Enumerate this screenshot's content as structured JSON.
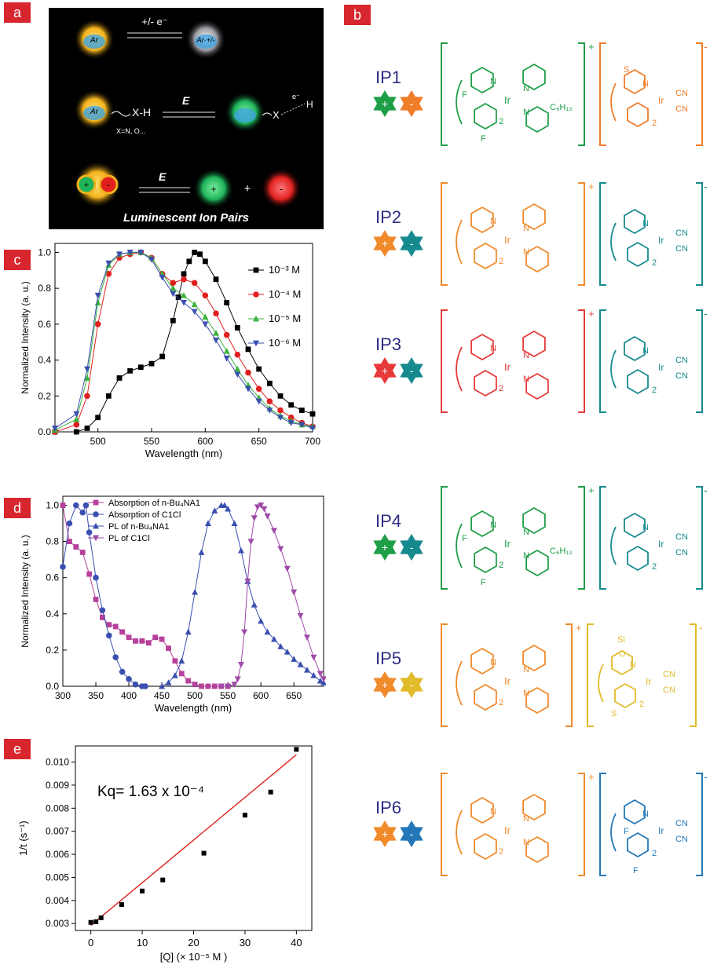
{
  "panels": {
    "a": {
      "label": "a"
    },
    "b": {
      "label": "b"
    },
    "c": {
      "label": "c"
    },
    "d": {
      "label": "d"
    },
    "e": {
      "label": "e"
    }
  },
  "panel_a": {
    "ar_label": "Ar",
    "ar_ion_label": "Ar·+/-",
    "arrow1_label": "+/- e⁻",
    "xh_label": "X-H",
    "xn_label": "X=N, O...",
    "e_label": "E",
    "x_label": "X",
    "h_label": "H",
    "e_minus": "e⁻",
    "plus_sign": "+",
    "minus_sign": "-",
    "title": "Luminescent Ion Pairs",
    "colors": {
      "background": "#000000",
      "yellow": "#f2b21c",
      "green": "#1fb35a",
      "red": "#e0201f"
    }
  },
  "ion_pairs": [
    {
      "name": "IP1",
      "cation_color": "#1f9e48",
      "anion_color": "#f07d2a"
    },
    {
      "name": "IP2",
      "cation_color": "#f08a2b",
      "anion_color": "#168a8e"
    },
    {
      "name": "IP3",
      "cation_color": "#e63a3a",
      "anion_color": "#168a8e"
    },
    {
      "name": "IP4",
      "cation_color": "#1f9e48",
      "anion_color": "#168a8e"
    },
    {
      "name": "IP5",
      "cation_color": "#f08a2b",
      "anion_color": "#e2bb2a"
    },
    {
      "name": "IP6",
      "cation_color": "#f08a2b",
      "anion_color": "#2478b8"
    }
  ],
  "chem": {
    "ir": "Ir",
    "cn": "CN",
    "n": "N",
    "s": "S",
    "f": "F",
    "o": "O",
    "si": "Si",
    "c6h13": "C₆H₁₃",
    "sub2": "2",
    "plus": "+",
    "minus": "-"
  },
  "chart_data": [
    {
      "id": "c",
      "type": "line",
      "xlabel": "Wavelength (nm)",
      "ylabel": "Normalized Intensity (a. u.)",
      "xlim": [
        460,
        700
      ],
      "ylim": [
        0,
        1.05
      ],
      "xticks": [
        500,
        550,
        600,
        650,
        700
      ],
      "yticks": [
        0.0,
        0.2,
        0.4,
        0.6,
        0.8,
        1.0
      ],
      "ytick_labels": [
        "0.0",
        "0.2",
        "0.4",
        "0.6",
        "0.8",
        "1.0"
      ],
      "legend_position": "top-right",
      "series": [
        {
          "name": "10⁻³ M",
          "color": "#000000",
          "marker": "square",
          "x": [
            460,
            480,
            490,
            500,
            510,
            520,
            530,
            540,
            550,
            560,
            570,
            575,
            580,
            585,
            590,
            595,
            600,
            610,
            620,
            630,
            640,
            650,
            660,
            670,
            680,
            690,
            700
          ],
          "y": [
            0.0,
            0.0,
            0.02,
            0.08,
            0.2,
            0.3,
            0.34,
            0.36,
            0.38,
            0.42,
            0.62,
            0.75,
            0.88,
            0.95,
            1.0,
            0.99,
            0.95,
            0.85,
            0.72,
            0.58,
            0.46,
            0.35,
            0.27,
            0.2,
            0.15,
            0.12,
            0.1
          ]
        },
        {
          "name": "10⁻⁴ M",
          "color": "#e0201f",
          "marker": "circle",
          "x": [
            460,
            480,
            490,
            500,
            510,
            520,
            530,
            540,
            550,
            560,
            570,
            580,
            590,
            600,
            610,
            620,
            630,
            640,
            650,
            660,
            670,
            680,
            690,
            700
          ],
          "y": [
            0.0,
            0.04,
            0.2,
            0.6,
            0.88,
            0.97,
            0.99,
            1.0,
            0.97,
            0.88,
            0.83,
            0.85,
            0.83,
            0.76,
            0.66,
            0.54,
            0.43,
            0.33,
            0.24,
            0.17,
            0.12,
            0.08,
            0.05,
            0.03
          ]
        },
        {
          "name": "10⁻⁵ M",
          "color": "#3bb33b",
          "marker": "triangle-up",
          "x": [
            460,
            480,
            490,
            500,
            510,
            520,
            530,
            540,
            550,
            560,
            570,
            580,
            590,
            600,
            610,
            620,
            630,
            640,
            650,
            660,
            670,
            680,
            690,
            700
          ],
          "y": [
            0.01,
            0.07,
            0.3,
            0.72,
            0.93,
            0.99,
            1.0,
            1.0,
            0.97,
            0.88,
            0.8,
            0.76,
            0.71,
            0.64,
            0.55,
            0.45,
            0.35,
            0.26,
            0.19,
            0.13,
            0.09,
            0.06,
            0.04,
            0.03
          ]
        },
        {
          "name": "10⁻⁶ M",
          "color": "#3a4fb0",
          "marker": "triangle-down",
          "x": [
            460,
            480,
            490,
            500,
            510,
            520,
            530,
            540,
            550,
            560,
            570,
            580,
            590,
            600,
            610,
            620,
            630,
            640,
            650,
            660,
            670,
            680,
            690,
            700
          ],
          "y": [
            0.02,
            0.1,
            0.35,
            0.76,
            0.94,
            0.99,
            1.0,
            1.0,
            0.96,
            0.86,
            0.77,
            0.72,
            0.67,
            0.6,
            0.51,
            0.41,
            0.32,
            0.24,
            0.17,
            0.12,
            0.08,
            0.05,
            0.04,
            0.02
          ]
        }
      ]
    },
    {
      "id": "d",
      "type": "line",
      "xlabel": "Wavelength (nm)",
      "ylabel": "Normalized Intensity (a. u.)",
      "xlim": [
        300,
        695
      ],
      "ylim": [
        0,
        1.05
      ],
      "xticks": [
        300,
        350,
        400,
        450,
        500,
        550,
        600,
        650
      ],
      "yticks": [
        0.0,
        0.2,
        0.4,
        0.6,
        0.8,
        1.0
      ],
      "ytick_labels": [
        "0.0",
        "0.2",
        "0.4",
        "0.6",
        "0.8",
        "1.0"
      ],
      "legend_position": "top-left",
      "series": [
        {
          "name": "Absorption of n-Bu₄NA1",
          "color": "#b6409b",
          "marker": "square",
          "x": [
            300,
            310,
            320,
            330,
            340,
            350,
            360,
            370,
            380,
            390,
            400,
            410,
            420,
            430,
            440,
            450,
            460,
            470,
            480,
            490,
            500,
            510,
            520,
            530,
            540,
            550
          ],
          "y": [
            1.0,
            0.8,
            0.77,
            0.74,
            0.62,
            0.48,
            0.38,
            0.34,
            0.33,
            0.3,
            0.27,
            0.25,
            0.25,
            0.24,
            0.27,
            0.26,
            0.21,
            0.14,
            0.07,
            0.03,
            0.01,
            0.0,
            0.0,
            0.0,
            0.0,
            0.0
          ]
        },
        {
          "name": "Absorption of C1Cl",
          "color": "#3a4fb0",
          "marker": "circle",
          "x": [
            300,
            310,
            320,
            330,
            335,
            340,
            350,
            360,
            370,
            380,
            390,
            400,
            410,
            420,
            425
          ],
          "y": [
            0.66,
            0.9,
            1.0,
            0.96,
            1.0,
            0.85,
            0.6,
            0.42,
            0.28,
            0.16,
            0.08,
            0.04,
            0.01,
            0.0,
            0.0
          ]
        },
        {
          "name": "PL of n-Bu₄NA1",
          "color": "#3a4fb0",
          "marker": "triangle-up",
          "x": [
            450,
            460,
            470,
            480,
            490,
            500,
            510,
            520,
            530,
            540,
            545,
            550,
            560,
            570,
            580,
            590,
            600,
            610,
            620,
            630,
            640,
            650,
            660,
            670,
            680,
            690,
            695
          ],
          "y": [
            0.0,
            0.02,
            0.06,
            0.14,
            0.3,
            0.52,
            0.74,
            0.9,
            0.97,
            1.0,
            1.0,
            0.98,
            0.9,
            0.75,
            0.58,
            0.45,
            0.36,
            0.3,
            0.26,
            0.22,
            0.19,
            0.15,
            0.12,
            0.09,
            0.06,
            0.03,
            0.02
          ]
        },
        {
          "name": "PL of C1Cl",
          "color": "#9e4aa8",
          "marker": "triangle-down",
          "x": [
            540,
            550,
            560,
            565,
            570,
            575,
            580,
            585,
            590,
            595,
            600,
            605,
            610,
            620,
            630,
            640,
            650,
            660,
            670,
            680,
            690,
            695
          ],
          "y": [
            0.0,
            0.0,
            0.01,
            0.04,
            0.12,
            0.3,
            0.58,
            0.8,
            0.93,
            0.99,
            1.0,
            0.98,
            0.94,
            0.86,
            0.76,
            0.65,
            0.52,
            0.39,
            0.27,
            0.16,
            0.07,
            0.04
          ]
        }
      ]
    },
    {
      "id": "e",
      "type": "scatter",
      "xlabel": "[Q] (× 10⁻⁵ M )",
      "ylabel": "1/t (s⁻¹)",
      "annotation": "Kq= 1.63 x 10⁻⁴",
      "xlim": [
        -3,
        43
      ],
      "ylim": [
        0.0027,
        0.0107
      ],
      "xticks": [
        0,
        10,
        20,
        30,
        40
      ],
      "yticks": [
        0.003,
        0.004,
        0.005,
        0.006,
        0.007,
        0.008,
        0.009,
        0.01
      ],
      "ytick_labels": [
        "0.003",
        "0.004",
        "0.005",
        "0.006",
        "0.007",
        "0.008",
        "0.009",
        "0.010"
      ],
      "points": {
        "x": [
          0,
          1,
          2,
          6,
          10,
          14,
          22,
          30,
          35,
          40
        ],
        "y": [
          0.00305,
          0.00308,
          0.00325,
          0.00382,
          0.00441,
          0.00489,
          0.00605,
          0.0077,
          0.0087,
          0.01055
        ]
      },
      "fit": {
        "x": [
          0,
          40
        ],
        "y": [
          0.00292,
          0.01032
        ],
        "color": "#e0201f"
      }
    }
  ]
}
